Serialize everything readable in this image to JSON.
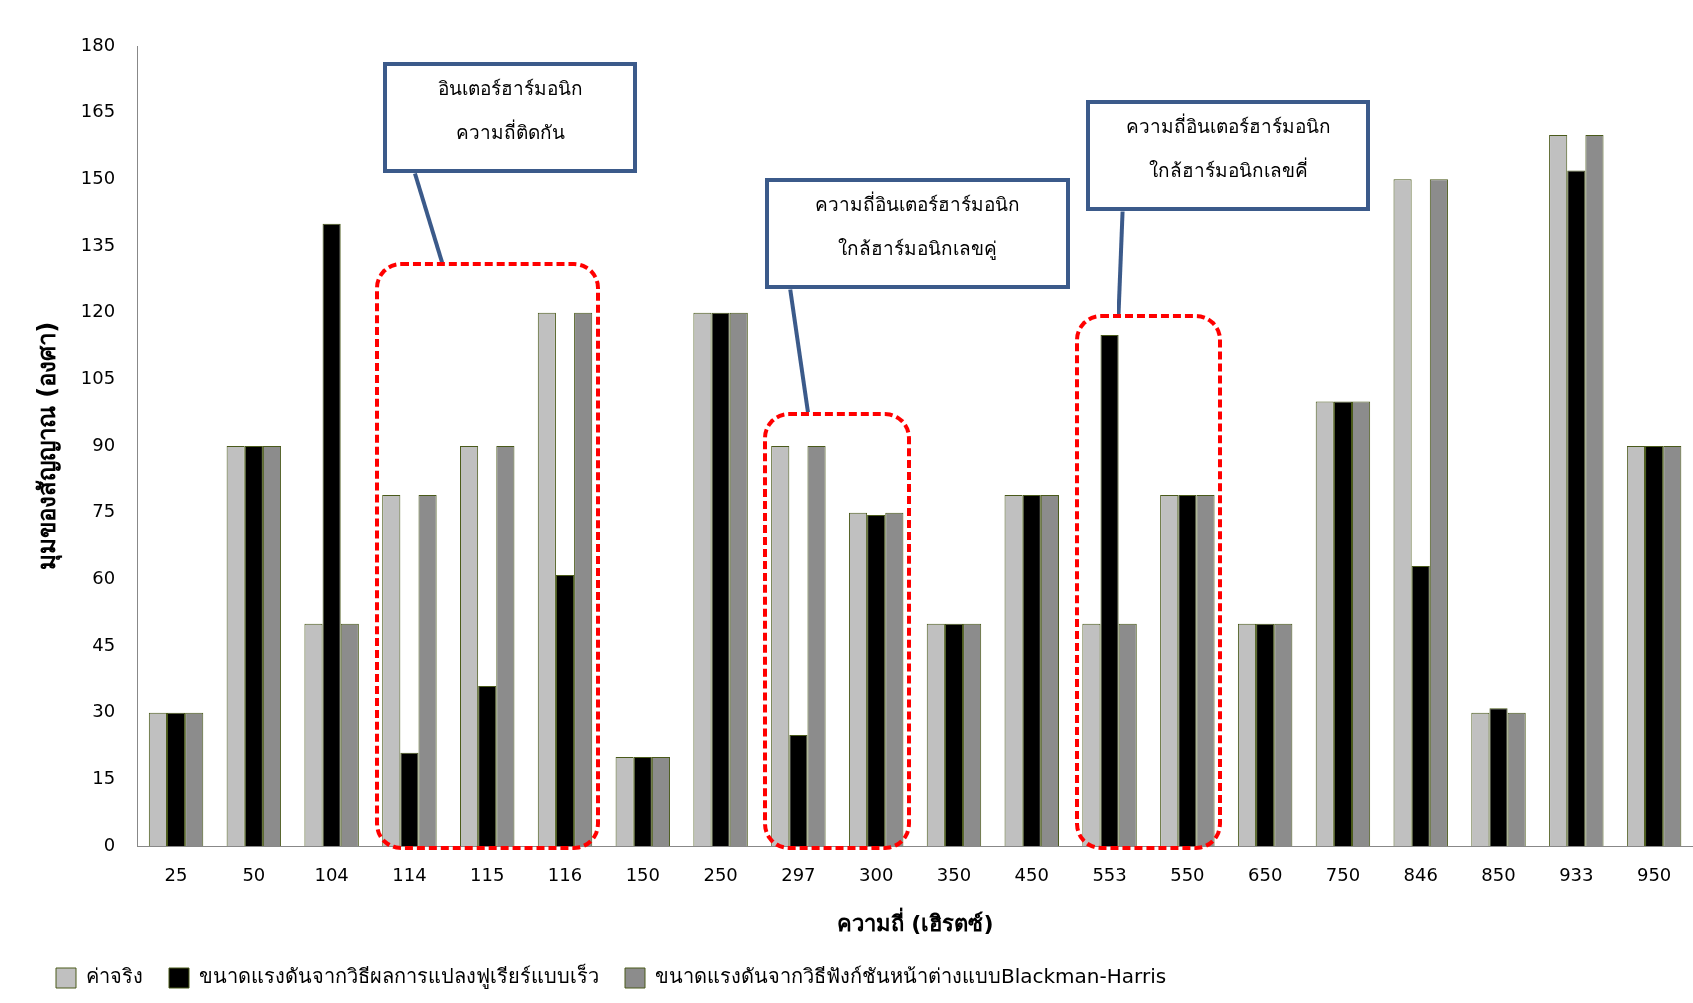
{
  "chart_data": {
    "type": "bar",
    "categories": [
      "25",
      "50",
      "104",
      "114",
      "115",
      "116",
      "150",
      "250",
      "297",
      "300",
      "350",
      "450",
      "553",
      "550",
      "650",
      "750",
      "846",
      "850",
      "933",
      "950"
    ],
    "series": [
      {
        "name": "ค่าจริง",
        "color": "#c0c0c0",
        "values": [
          30,
          90,
          50,
          79,
          90,
          120,
          20,
          120,
          90,
          75,
          50,
          79,
          50,
          79,
          50,
          100,
          150,
          30,
          160,
          90
        ]
      },
      {
        "name": "ขนาดแรงดันจากวิธีผลการแปลงฟูเรียร์แบบเร็ว",
        "color": "#000000",
        "values": [
          30,
          90,
          140,
          21,
          36,
          61,
          20,
          120,
          25,
          74.5,
          50,
          79,
          115,
          79,
          50,
          100,
          63,
          31,
          152,
          90
        ]
      },
      {
        "name": "ขนาดแรงดันจากวิธีฟังก์ชันหน้าต่างแบบBlackman-Harris",
        "color": "#8c8c8c",
        "values": [
          30,
          90,
          50,
          79,
          90,
          120,
          20,
          120,
          90,
          75,
          50,
          79,
          50,
          79,
          50,
          100,
          150,
          30,
          160,
          90
        ]
      }
    ],
    "xlabel": "ความถี่ (เฮิรตซ์)",
    "ylabel": "มุมของสัญญาณ (องศา)",
    "ylim": [
      0,
      180
    ],
    "yticks": [
      0,
      15,
      30,
      45,
      60,
      75,
      90,
      105,
      120,
      135,
      150,
      165,
      180
    ],
    "grid": false,
    "legend": "bottom",
    "annotations": [
      "อินเตอร์ฮาร์มอนิก\nความถี่ติดกัน",
      "ความถี่อินเตอร์ฮาร์มอนิก\nใกล้ฮาร์มอนิกเลขคู่",
      "ความถี่อินเตอร์ฮาร์มอนิก\nใกล้ฮาร์มอนิกเลขคี่"
    ]
  }
}
